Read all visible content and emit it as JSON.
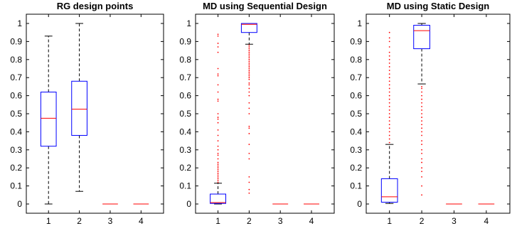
{
  "chart_data": [
    {
      "type": "boxplot",
      "title": "RG design points",
      "categories": [
        "1",
        "2",
        "3",
        "4"
      ],
      "yticks": [
        "0",
        "0.1",
        "0.2",
        "0.3",
        "0.4",
        "0.5",
        "0.6",
        "0.7",
        "0.8",
        "0.9",
        "1"
      ],
      "ylim": [
        0,
        1
      ],
      "grid": false,
      "boxes": [
        {
          "category": "1",
          "whisker_low": 0.0,
          "q1": 0.32,
          "median": 0.475,
          "q3": 0.62,
          "whisker_high": 0.93,
          "outliers": []
        },
        {
          "category": "2",
          "whisker_low": 0.07,
          "q1": 0.38,
          "median": 0.525,
          "q3": 0.68,
          "whisker_high": 1.0,
          "outliers": []
        },
        {
          "category": "3",
          "whisker_low": 0.0,
          "q1": 0.0,
          "median": 0.0,
          "q3": 0.0,
          "whisker_high": 0.0,
          "outliers": []
        },
        {
          "category": "4",
          "whisker_low": 0.0,
          "q1": 0.0,
          "median": 0.0,
          "q3": 0.0,
          "whisker_high": 0.0,
          "outliers": []
        }
      ]
    },
    {
      "type": "boxplot",
      "title": "MD using Sequential Design",
      "categories": [
        "1",
        "2",
        "3",
        "4"
      ],
      "yticks": [
        "0",
        "0.1",
        "0.2",
        "0.3",
        "0.4",
        "0.5",
        "0.6",
        "0.7",
        "0.8",
        "0.9",
        "1"
      ],
      "ylim": [
        0,
        1
      ],
      "grid": false,
      "boxes": [
        {
          "category": "1",
          "whisker_low": 0.0,
          "q1": 0.003,
          "median": 0.008,
          "q3": 0.055,
          "whisker_high": 0.115,
          "outliers": [
            0.12,
            0.13,
            0.14,
            0.15,
            0.16,
            0.17,
            0.18,
            0.19,
            0.2,
            0.21,
            0.22,
            0.23,
            0.25,
            0.27,
            0.28,
            0.3,
            0.32,
            0.35,
            0.38,
            0.41,
            0.45,
            0.47,
            0.48,
            0.5,
            0.57,
            0.58,
            0.62,
            0.66,
            0.71,
            0.72,
            0.75,
            0.84,
            0.87,
            0.89,
            0.93,
            0.94
          ]
        },
        {
          "category": "2",
          "whisker_low": 0.885,
          "q1": 0.95,
          "median": 0.995,
          "q3": 1.0,
          "whisker_high": 1.0,
          "outliers": [
            0.06,
            0.08,
            0.12,
            0.15,
            0.25,
            0.28,
            0.33,
            0.39,
            0.42,
            0.43,
            0.5,
            0.53,
            0.56,
            0.6,
            0.62,
            0.64,
            0.66,
            0.67,
            0.69,
            0.7,
            0.71,
            0.72,
            0.73,
            0.74,
            0.75,
            0.76,
            0.77,
            0.78,
            0.79,
            0.8,
            0.81,
            0.82,
            0.83,
            0.84,
            0.85,
            0.86,
            0.87,
            0.88
          ]
        },
        {
          "category": "3",
          "whisker_low": 0.0,
          "q1": 0.0,
          "median": 0.0,
          "q3": 0.0,
          "whisker_high": 0.0,
          "outliers": []
        },
        {
          "category": "4",
          "whisker_low": 0.0,
          "q1": 0.0,
          "median": 0.0,
          "q3": 0.0,
          "whisker_high": 0.0,
          "outliers": []
        }
      ]
    },
    {
      "type": "boxplot",
      "title": "MD using Static Design",
      "categories": [
        "1",
        "2",
        "3",
        "4"
      ],
      "yticks": [
        "0",
        "0.1",
        "0.2",
        "0.3",
        "0.4",
        "0.5",
        "0.6",
        "0.7",
        "0.8",
        "0.9",
        "1"
      ],
      "ylim": [
        0,
        1
      ],
      "grid": false,
      "boxes": [
        {
          "category": "1",
          "whisker_low": 0.003,
          "q1": 0.01,
          "median": 0.04,
          "q3": 0.14,
          "whisker_high": 0.33,
          "outliers": [
            0.34,
            0.36,
            0.38,
            0.4,
            0.42,
            0.44,
            0.46,
            0.48,
            0.5,
            0.52,
            0.54,
            0.56,
            0.58,
            0.6,
            0.62,
            0.64,
            0.66,
            0.68,
            0.7,
            0.72,
            0.74,
            0.76,
            0.78,
            0.8,
            0.82,
            0.84,
            0.87,
            0.9,
            0.92,
            0.95
          ]
        },
        {
          "category": "2",
          "whisker_low": 0.665,
          "q1": 0.86,
          "median": 0.96,
          "q3": 0.99,
          "whisker_high": 1.0,
          "outliers": [
            0.05,
            0.1,
            0.15,
            0.18,
            0.2,
            0.23,
            0.25,
            0.28,
            0.3,
            0.33,
            0.35,
            0.38,
            0.4,
            0.42,
            0.44,
            0.46,
            0.48,
            0.5,
            0.52,
            0.54,
            0.56,
            0.58,
            0.6,
            0.62,
            0.64,
            0.65
          ]
        },
        {
          "category": "3",
          "whisker_low": 0.0,
          "q1": 0.0,
          "median": 0.0,
          "q3": 0.0,
          "whisker_high": 0.0,
          "outliers": []
        },
        {
          "category": "4",
          "whisker_low": 0.0,
          "q1": 0.0,
          "median": 0.0,
          "q3": 0.0,
          "whisker_high": 0.0,
          "outliers": []
        }
      ]
    }
  ],
  "colors": {
    "box": "#0000ff",
    "median": "#ff0000",
    "whisker": "#000000",
    "outlier": "#ff0000",
    "axis": "#000000",
    "background": "#ffffff"
  }
}
